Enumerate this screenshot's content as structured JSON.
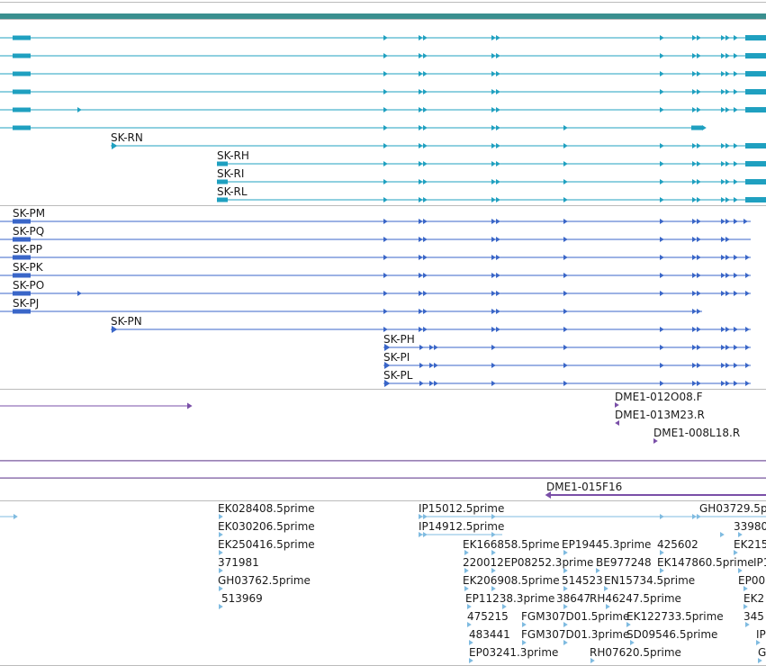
{
  "colors": {
    "gene_bar": "#3a8f8f",
    "cds_track": "#1fa0c0",
    "transcript_track": "#3a66c8",
    "clone_track": "#7a4fa8",
    "est_track": "#7fbbe0",
    "separator": "#bbbbbb"
  },
  "cds_track": {
    "labels": [
      "SK-RN",
      "SK-RH",
      "SK-RI",
      "SK-RL"
    ]
  },
  "transcript_track": {
    "labels": [
      "SK-PM",
      "SK-PQ",
      "SK-PP",
      "SK-PK",
      "SK-PO",
      "SK-PJ",
      "SK-PN",
      "SK-PH",
      "SK-PI",
      "SK-PL"
    ]
  },
  "clone_track": {
    "labels": [
      "DME1-012O08.F",
      "DME1-013M23.R",
      "DME1-008L18.R",
      "DME1-015F16"
    ]
  },
  "est_track": {
    "labels": [
      "EK028408.5prime",
      "EK030206.5prime",
      "EK250416.5prime",
      "371981",
      "GH03762.5prime",
      "513969",
      "IP15012.5prime",
      "IP14912.5prime",
      "GH03729.5p",
      "33980",
      "EK166858.5prime",
      "EP19445.3prime",
      "425602",
      "EK215",
      "220012",
      "EP08252.3prime",
      "BE977248",
      "EK147860.5prime",
      "IP1",
      "EK206908.5prime",
      "514523",
      "EN15734.5prime",
      "EP00",
      "EP11238.3prime",
      "38647",
      "RH46247.5prime",
      "EK2",
      "475215",
      "FGM307D01.5prime",
      "EK122733.5prime",
      "345",
      "483441",
      "FGM307D01.3prime",
      "SD09546.5prime",
      "IP",
      "EP03241.3prime",
      "RH07620.5prime",
      "G"
    ]
  }
}
